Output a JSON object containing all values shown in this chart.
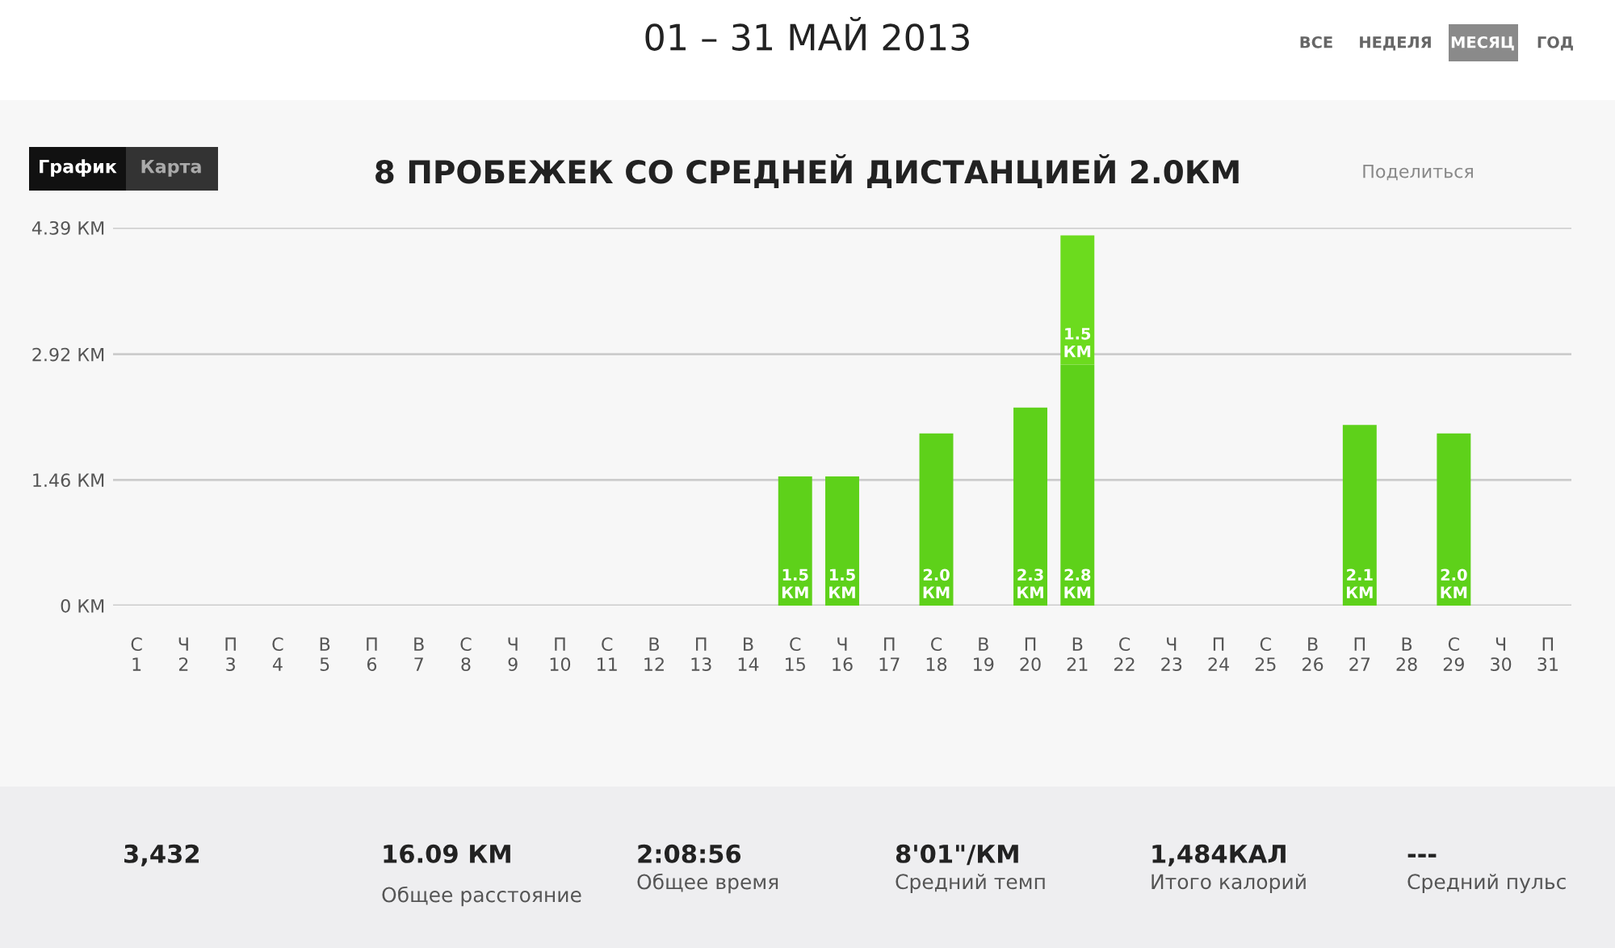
{
  "chart_data": {
    "type": "bar",
    "title": "8 ПРОБЕЖЕК СО СРЕДНЕЙ ДИСТАНЦИЕЙ 2.0КМ",
    "subtitle": "01 – 31 МАЙ 2013",
    "categories": [
      "С\n1",
      "Ч\n2",
      "П\n3",
      "С\n4",
      "В\n5",
      "П\n6",
      "В\n7",
      "С\n8",
      "Ч\n9",
      "П\n10",
      "С\n11",
      "В\n12",
      "П\n13",
      "В\n14",
      "С\n15",
      "Ч\n16",
      "П\n17",
      "С\n18",
      "В\n19",
      "П\n20",
      "В\n21",
      "С\n22",
      "Ч\n23",
      "П\n24",
      "С\n25",
      "В\n26",
      "П\n27",
      "В\n28",
      "С\n29",
      "Ч\n30",
      "П\n31"
    ],
    "stacked": true,
    "series": [
      {
        "color": "#5ed11a",
        "values": [
          0,
          0,
          0,
          0,
          0,
          0,
          0,
          0,
          0,
          0,
          0,
          0,
          0,
          0,
          1.5,
          1.5,
          0,
          2.0,
          0,
          2.3,
          2.8,
          0,
          0,
          0,
          0,
          0,
          2.1,
          0,
          2.0,
          0,
          0
        ],
        "value_labels": [
          null,
          null,
          null,
          null,
          null,
          null,
          null,
          null,
          null,
          null,
          null,
          null,
          null,
          null,
          "1.5 КМ",
          "1.5 КМ",
          null,
          "2.0 КМ",
          null,
          "2.3 КМ",
          "2.8 КМ",
          null,
          null,
          null,
          null,
          null,
          "2.1 КМ",
          null,
          "2.0 КМ",
          null,
          null
        ]
      },
      {
        "color": "#6cdb1e",
        "values": [
          null,
          null,
          null,
          null,
          null,
          null,
          null,
          null,
          null,
          null,
          null,
          null,
          null,
          null,
          null,
          null,
          null,
          null,
          null,
          null,
          1.5,
          null,
          null,
          null,
          null,
          null,
          null,
          null,
          null,
          null,
          null
        ],
        "value_labels": [
          null,
          null,
          null,
          null,
          null,
          null,
          null,
          null,
          null,
          null,
          null,
          null,
          null,
          null,
          null,
          null,
          null,
          null,
          null,
          null,
          "1.5 КМ",
          null,
          null,
          null,
          null,
          null,
          null,
          null,
          null,
          null,
          null
        ]
      }
    ],
    "ylim": [
      0,
      4.39
    ],
    "yticks": [
      {
        "value": 0,
        "label": "0 КМ"
      },
      {
        "value": 1.46,
        "label": "1.46 КМ"
      },
      {
        "value": 2.92,
        "label": "2.92 КМ"
      },
      {
        "value": 4.39,
        "label": "4.39 КМ"
      }
    ],
    "grid": "y",
    "annotations": [
      "ВСЕ",
      "НЕДЕЛЯ",
      "МЕСЯЦ",
      "ГОД",
      "График",
      "Карта",
      "Поделиться",
      "3,432",
      "16.09 КМ",
      "Общее расстояние",
      "2:08:56",
      "Общее время",
      "8'01\"/КМ",
      "Средний темп",
      "1,484КАЛ",
      "Итого калорий",
      "---",
      "Средний пульс"
    ]
  }
}
